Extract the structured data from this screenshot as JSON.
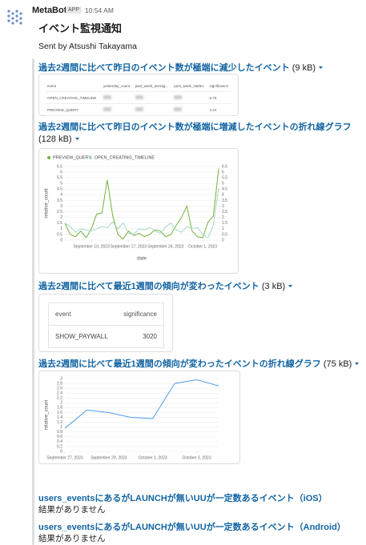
{
  "message": {
    "sender": "MetaBot",
    "badge": "APP",
    "time": "10:54 AM",
    "title": "イベント監視通知",
    "sent_by": "Sent by Atsushi Takayama"
  },
  "attachments": [
    {
      "link": "過去2週間に比べて昨日のイベント数が極端に減少したイベント",
      "size": "(9 kB)",
      "table": {
        "columns": [
          "event",
          "yesterday_count",
          "past_week_averag...",
          "past_week_stddev",
          "significance"
        ],
        "rows": [
          {
            "event": "OPEN_CREATING_TIMELINE",
            "significance": 6.73
          },
          {
            "event": "PREVIEW_QUERY",
            "significance": 4.24
          }
        ]
      }
    },
    {
      "link": "過去2週間に比べて昨日のイベント数が極端に増減したイベントの折れ線グラフ",
      "size": "(128 kB)",
      "chart_data": {
        "type": "line",
        "x_label": "date",
        "y_label": "relative_count",
        "grid": true,
        "legend": "top-left",
        "x": [
          "2023-09-05",
          "2023-09-06",
          "2023-09-07",
          "2023-09-08",
          "2023-09-09",
          "2023-09-10",
          "2023-09-11",
          "2023-09-12",
          "2023-09-13",
          "2023-09-14",
          "2023-09-15",
          "2023-09-16",
          "2023-09-17",
          "2023-09-18",
          "2023-09-19",
          "2023-09-20",
          "2023-09-21",
          "2023-09-22",
          "2023-09-23",
          "2023-09-24",
          "2023-09-25",
          "2023-09-26",
          "2023-09-27",
          "2023-09-28",
          "2023-09-29",
          "2023-09-30",
          "2023-10-01",
          "2023-10-02",
          "2023-10-03",
          "2023-10-04"
        ],
        "xlim": [
          "2023-09-05",
          "2023-10-04"
        ],
        "xticks": [
          {
            "value": "2023-09-10",
            "label": "September 10, 2023"
          },
          {
            "value": "2023-09-17",
            "label": "September 17, 2023"
          },
          {
            "value": "2023-09-24",
            "label": "September 24, 2023"
          },
          {
            "value": "2023-10-01",
            "label": "October 1, 2023"
          }
        ],
        "ylim": [
          0,
          6.5
        ],
        "yticks": [
          0,
          0.5,
          1,
          1.5,
          2,
          2.5,
          3,
          3.5,
          4,
          4.5,
          5,
          5.5,
          6,
          6.5
        ],
        "y2lim": [
          0,
          6.5
        ],
        "y2ticks": [
          0,
          0.5,
          1,
          1.5,
          2,
          2.5,
          3,
          3.5,
          4,
          4.5,
          5,
          5.5,
          6,
          6.5
        ],
        "series": [
          {
            "name": "PREVIEW_QUERY",
            "color": "#74b33b",
            "values": [
              1.5,
              0.5,
              0.3,
              0.8,
              0.2,
              1.0,
              2.3,
              2.4,
              5.3,
              2.2,
              0.5,
              0.1,
              0.8,
              0.4,
              0.6,
              0.3,
              0.5,
              0.9,
              0.8,
              0.3,
              0.5,
              1.3,
              2.0,
              3.0,
              0.8,
              0.3,
              0.2,
              1.6,
              2.1,
              6.3
            ]
          },
          {
            "name": "OPEN_CREATING_TIMELINE",
            "color": "#a6d8c6",
            "axis": "y2",
            "values": [
              1.5,
              1.2,
              0.7,
              1.0,
              0.9,
              0.8,
              1.0,
              1.2,
              1.1,
              1.6,
              1.0,
              1.5,
              0.6,
              0.5,
              1.0,
              0.9,
              1.1,
              0.8,
              0.6,
              1.2,
              1.5,
              0.9,
              0.7,
              1.2,
              1.0,
              1.1,
              0.5,
              0.2,
              1.3,
              4.6
            ]
          }
        ]
      }
    },
    {
      "link": "過去2週間に比べて最近1週間の傾向が変わったイベント",
      "size": "(3 kB)",
      "table": {
        "columns": [
          "event",
          "significance"
        ],
        "rows": [
          {
            "event": "SHOW_PAYWALL",
            "significance": 3020
          }
        ]
      }
    },
    {
      "link": "過去2週間に比べて最近1週間の傾向が変わったイベントの折れ線グラフ",
      "size": "(75 kB)",
      "chart_data": {
        "type": "line",
        "y_label": "relative_count",
        "grid": true,
        "color": "#509ee3",
        "x": [
          "2023-09-27",
          "2023-09-28",
          "2023-09-29",
          "2023-09-30",
          "2023-10-01",
          "2023-10-02",
          "2023-10-03",
          "2023-10-04"
        ],
        "xlim": [
          "2023-09-27",
          "2023-10-04"
        ],
        "xticks": [
          {
            "value": "2023-09-27",
            "label": "September 27, 2023"
          },
          {
            "value": "2023-09-29",
            "label": "September 29, 2023"
          },
          {
            "value": "2023-10-01",
            "label": "October 1, 2023"
          },
          {
            "value": "2023-10-03",
            "label": "October 3, 2023"
          }
        ],
        "ylim": [
          0,
          3
        ],
        "yticks": [
          0,
          0.2,
          0.4,
          0.6,
          0.8,
          1,
          1.2,
          1.4,
          1.6,
          1.8,
          2,
          2.2,
          2.4,
          2.6,
          2.8,
          3
        ],
        "values": [
          0.95,
          1.7,
          1.6,
          1.4,
          1.35,
          2.8,
          2.95,
          2.7
        ]
      }
    },
    {
      "link": "users_eventsにあるがLAUNCHが無いUUが一定数あるイベント（iOS）",
      "result": "結果がありません"
    },
    {
      "link": "users_eventsにあるがLAUNCHが無いUUが一定数あるイベント（Android）",
      "result": "結果がありません"
    }
  ]
}
